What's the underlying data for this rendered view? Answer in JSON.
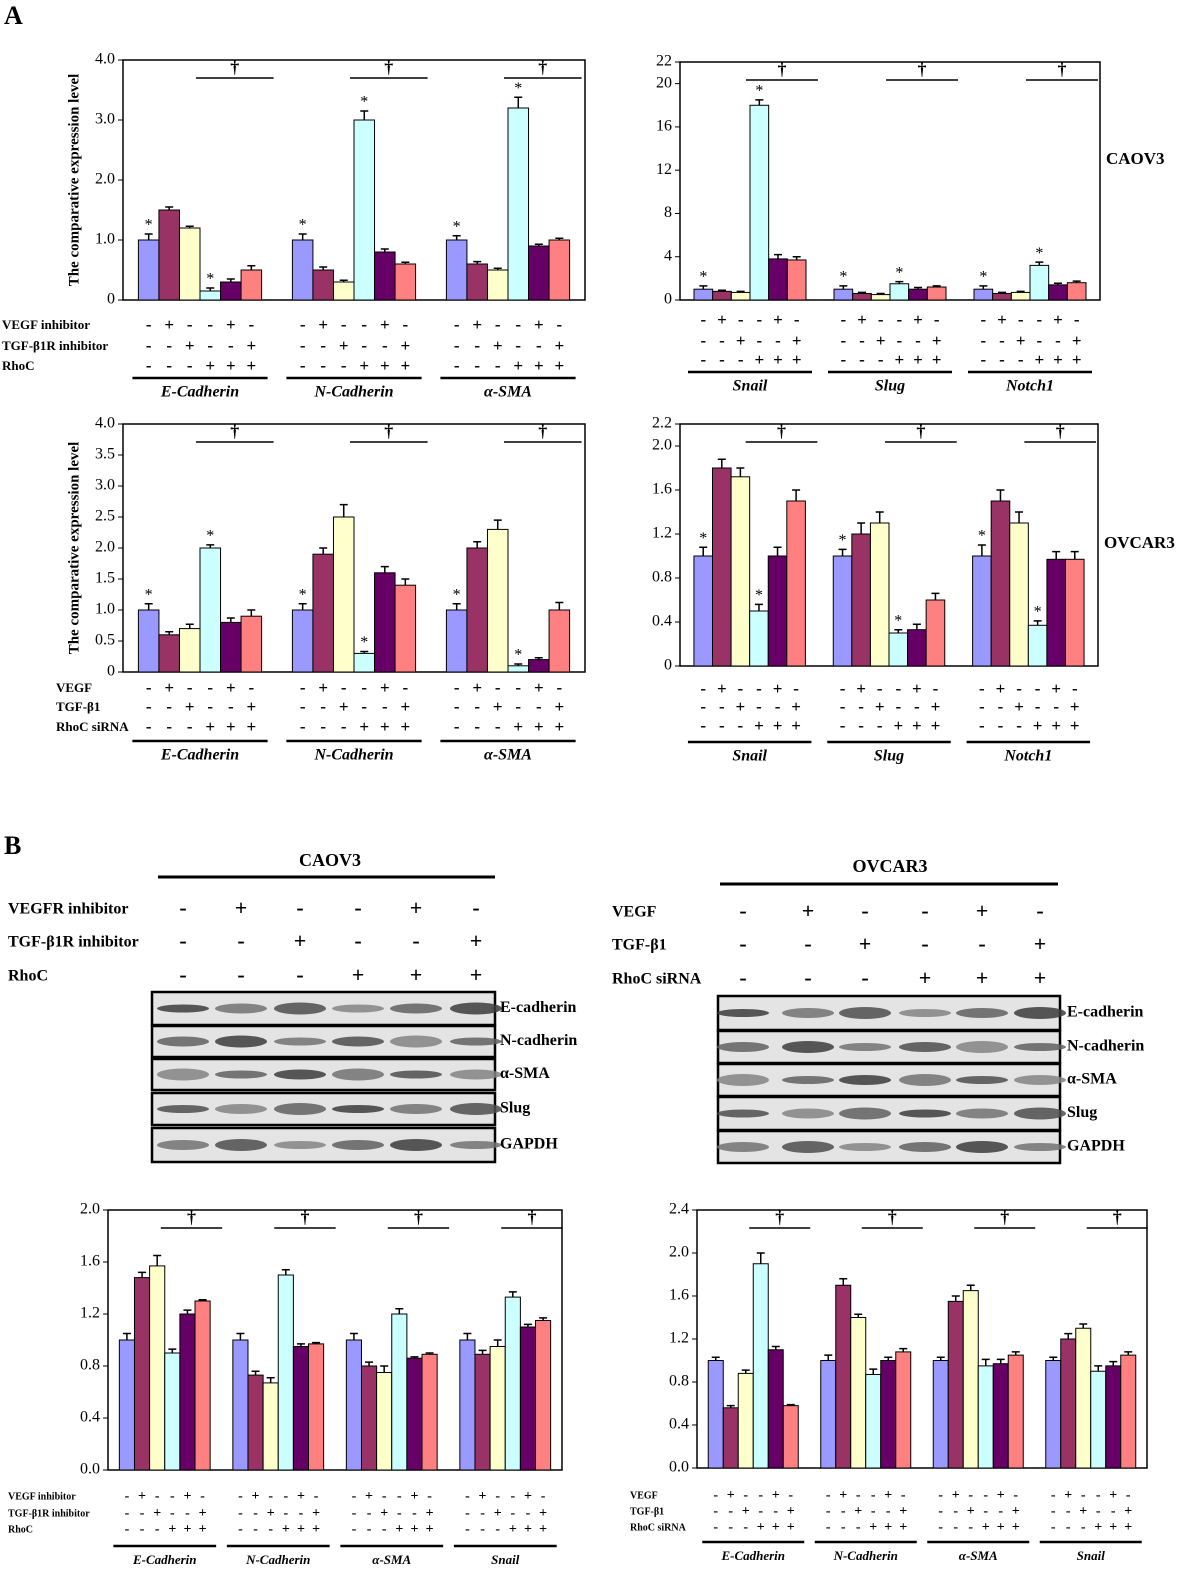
{
  "panel_labels": [
    "A",
    "B"
  ],
  "chart_data": [
    {
      "type": "bar",
      "ylabel": "The comparative expression level",
      "categories": [
        "E-Cadherin",
        "N-Cadherin",
        "α-SMA"
      ],
      "ylim": [
        0,
        4
      ],
      "yticks": [
        0,
        {
          "value": 1,
          "label": "1.0"
        },
        {
          "value": 2,
          "label": "2.0"
        },
        {
          "value": 3,
          "label": "3.0"
        },
        {
          "value": 4,
          "label": "4.0"
        }
      ],
      "series": [
        {
          "color": "#9999ff",
          "values": [
            1.0,
            1.0,
            1.0
          ],
          "errors": [
            0.1,
            0.1,
            0.07
          ]
        },
        {
          "color": "#993366",
          "values": [
            1.5,
            0.5,
            0.6
          ],
          "errors": [
            0.05,
            0.05,
            0.04
          ]
        },
        {
          "color": "#ffffcc",
          "values": [
            1.2,
            0.3,
            0.5
          ],
          "errors": [
            0.03,
            0.03,
            0.03
          ]
        },
        {
          "color": "#ccffff",
          "values": [
            0.15,
            3.0,
            3.2
          ],
          "errors": [
            0.05,
            0.15,
            0.18
          ]
        },
        {
          "color": "#660066",
          "values": [
            0.3,
            0.8,
            0.9
          ],
          "errors": [
            0.05,
            0.05,
            0.03
          ]
        },
        {
          "color": "#ff8080",
          "values": [
            0.5,
            0.6,
            1.0
          ],
          "errors": [
            0.07,
            0.03,
            0.03
          ]
        }
      ],
      "conditions": [
        {
          "label": "VEGF inhibitor",
          "signs": [
            "-",
            "+",
            "-",
            "-",
            "+",
            "-"
          ]
        },
        {
          "label": "TGF-β1R inhibitor",
          "signs": [
            "-",
            "-",
            "+",
            "-",
            "-",
            "+"
          ]
        },
        {
          "label": "RhoC",
          "signs": [
            "-",
            "-",
            "-",
            "+",
            "+",
            "+"
          ]
        }
      ],
      "annotations": [
        {
          "text": "*",
          "series": 0,
          "category": 0
        },
        {
          "text": "*",
          "series": 0,
          "category": 1
        },
        {
          "text": "*",
          "series": 0,
          "category": 2
        },
        {
          "text": "*",
          "series": 3,
          "category": 0
        },
        {
          "text": "*",
          "series": 3,
          "category": 1
        },
        {
          "text": "*",
          "series": 3,
          "category": 2
        }
      ],
      "dagger": "†"
    },
    {
      "type": "bar",
      "side_label": "CAOV3",
      "categories": [
        "Snail",
        "Slug",
        "Notch1"
      ],
      "ylim": [
        0,
        22
      ],
      "yticks": [
        0,
        4,
        8,
        12,
        16,
        20,
        22
      ],
      "series": [
        {
          "color": "#9999ff",
          "values": [
            1.0,
            1.0,
            1.0
          ],
          "errors": [
            0.3,
            0.3,
            0.3
          ]
        },
        {
          "color": "#993366",
          "values": [
            0.8,
            0.6,
            0.6
          ],
          "errors": [
            0.1,
            0.1,
            0.1
          ]
        },
        {
          "color": "#ffffcc",
          "values": [
            0.7,
            0.5,
            0.7
          ],
          "errors": [
            0.1,
            0.1,
            0.1
          ]
        },
        {
          "color": "#ccffff",
          "values": [
            18,
            1.5,
            3.2
          ],
          "errors": [
            0.5,
            0.2,
            0.3
          ]
        },
        {
          "color": "#660066",
          "values": [
            3.8,
            1.0,
            1.4
          ],
          "errors": [
            0.4,
            0.15,
            0.15
          ]
        },
        {
          "color": "#ff8080",
          "values": [
            3.7,
            1.2,
            1.6
          ],
          "errors": [
            0.3,
            0.1,
            0.15
          ]
        }
      ],
      "conditions": [
        {
          "signs": [
            "-",
            "+",
            "-",
            "-",
            "+",
            "-"
          ]
        },
        {
          "signs": [
            "-",
            "-",
            "+",
            "-",
            "-",
            "+"
          ]
        },
        {
          "signs": [
            "-",
            "-",
            "-",
            "+",
            "+",
            "+"
          ]
        }
      ],
      "annotations": [
        {
          "text": "*",
          "series": 0,
          "category": 0
        },
        {
          "text": "*",
          "series": 0,
          "category": 1
        },
        {
          "text": "*",
          "series": 0,
          "category": 2
        },
        {
          "text": "*",
          "series": 3,
          "category": 0
        },
        {
          "text": "*",
          "series": 3,
          "category": 1
        },
        {
          "text": "*",
          "series": 3,
          "category": 2
        }
      ],
      "dagger": "†"
    },
    {
      "type": "bar",
      "ylabel": "The comparative expression level",
      "categories": [
        "E-Cadherin",
        "N-Cadherin",
        "α-SMA"
      ],
      "ylim": [
        0,
        4
      ],
      "yticks": [
        0,
        0.5,
        {
          "value": 1,
          "label": "1.0"
        },
        1.5,
        {
          "value": 2,
          "label": "2.0"
        },
        2.5,
        {
          "value": 3,
          "label": "3.0"
        },
        3.5,
        {
          "value": 4,
          "label": "4.0"
        }
      ],
      "series": [
        {
          "color": "#9999ff",
          "values": [
            1.0,
            1.0,
            1.0
          ],
          "errors": [
            0.1,
            0.1,
            0.1
          ]
        },
        {
          "color": "#993366",
          "values": [
            0.6,
            1.9,
            2.0
          ],
          "errors": [
            0.05,
            0.1,
            0.1
          ]
        },
        {
          "color": "#ffffcc",
          "values": [
            0.7,
            2.5,
            2.3
          ],
          "errors": [
            0.07,
            0.2,
            0.15
          ]
        },
        {
          "color": "#ccffff",
          "values": [
            2.0,
            0.3,
            0.1
          ],
          "errors": [
            0.05,
            0.03,
            0.03
          ]
        },
        {
          "color": "#660066",
          "values": [
            0.8,
            1.6,
            0.2
          ],
          "errors": [
            0.07,
            0.1,
            0.03
          ]
        },
        {
          "color": "#ff8080",
          "values": [
            0.9,
            1.4,
            1.0
          ],
          "errors": [
            0.1,
            0.1,
            0.12
          ]
        }
      ],
      "conditions": [
        {
          "label": "VEGF",
          "signs": [
            "-",
            "+",
            "-",
            "-",
            "+",
            "-"
          ]
        },
        {
          "label": "TGF-β1",
          "signs": [
            "-",
            "-",
            "+",
            "-",
            "-",
            "+"
          ]
        },
        {
          "label": "RhoC siRNA",
          "signs": [
            "-",
            "-",
            "-",
            "+",
            "+",
            "+"
          ]
        }
      ],
      "annotations": [
        {
          "text": "*",
          "series": 0,
          "category": 0
        },
        {
          "text": "*",
          "series": 0,
          "category": 1
        },
        {
          "text": "*",
          "series": 0,
          "category": 2
        },
        {
          "text": "*",
          "series": 3,
          "category": 0
        },
        {
          "text": "*",
          "series": 3,
          "category": 1
        },
        {
          "text": "*",
          "series": 3,
          "category": 2
        }
      ],
      "dagger": "†"
    },
    {
      "type": "bar",
      "side_label": "OVCAR3",
      "categories": [
        "Snail",
        "Slug",
        "Notch1"
      ],
      "ylim": [
        0,
        2.2
      ],
      "yticks": [
        0,
        0.4,
        0.8,
        1.2,
        1.6,
        {
          "value": 2,
          "label": "2.0"
        },
        2.2
      ],
      "series": [
        {
          "color": "#9999ff",
          "values": [
            1.0,
            1.0,
            1.0
          ],
          "errors": [
            0.08,
            0.06,
            0.1
          ]
        },
        {
          "color": "#993366",
          "values": [
            1.8,
            1.2,
            1.5
          ],
          "errors": [
            0.08,
            0.1,
            0.1
          ]
        },
        {
          "color": "#ffffcc",
          "values": [
            1.72,
            1.3,
            1.3
          ],
          "errors": [
            0.08,
            0.1,
            0.1
          ]
        },
        {
          "color": "#ccffff",
          "values": [
            0.5,
            0.3,
            0.37
          ],
          "errors": [
            0.06,
            0.03,
            0.04
          ]
        },
        {
          "color": "#660066",
          "values": [
            1.0,
            0.33,
            0.97
          ],
          "errors": [
            0.08,
            0.05,
            0.07
          ]
        },
        {
          "color": "#ff8080",
          "values": [
            1.5,
            0.6,
            0.97
          ],
          "errors": [
            0.1,
            0.06,
            0.07
          ]
        }
      ],
      "conditions": [
        {
          "signs": [
            "-",
            "+",
            "-",
            "-",
            "+",
            "-"
          ]
        },
        {
          "signs": [
            "-",
            "-",
            "+",
            "-",
            "-",
            "+"
          ]
        },
        {
          "signs": [
            "-",
            "-",
            "-",
            "+",
            "+",
            "+"
          ]
        }
      ],
      "annotations": [
        {
          "text": "*",
          "series": 0,
          "category": 0
        },
        {
          "text": "*",
          "series": 0,
          "category": 1
        },
        {
          "text": "*",
          "series": 0,
          "category": 2
        },
        {
          "text": "*",
          "series": 3,
          "category": 0
        },
        {
          "text": "*",
          "series": 3,
          "category": 1
        },
        {
          "text": "*",
          "series": 3,
          "category": 2
        }
      ],
      "dagger": "†"
    },
    {
      "type": "bar",
      "categories": [
        "E-Cadherin",
        "N-Cadherin",
        "α-SMA",
        "Snail"
      ],
      "ylim": [
        0,
        2
      ],
      "yticks": [
        {
          "value": 0,
          "label": "0.0"
        },
        0.4,
        0.8,
        1.2,
        1.6,
        {
          "value": 2,
          "label": "2.0"
        }
      ],
      "series": [
        {
          "color": "#9999ff",
          "values": [
            1.0,
            1.0,
            1.0,
            1.0
          ],
          "errors": [
            0.05,
            0.05,
            0.05,
            0.05
          ]
        },
        {
          "color": "#993366",
          "values": [
            1.48,
            0.73,
            0.8,
            0.89
          ],
          "errors": [
            0.04,
            0.03,
            0.03,
            0.03
          ]
        },
        {
          "color": "#ffffcc",
          "values": [
            1.57,
            0.67,
            0.75,
            0.95
          ],
          "errors": [
            0.08,
            0.04,
            0.05,
            0.05
          ]
        },
        {
          "color": "#ccffff",
          "values": [
            0.9,
            1.5,
            1.2,
            1.33
          ],
          "errors": [
            0.03,
            0.04,
            0.04,
            0.04
          ]
        },
        {
          "color": "#660066",
          "values": [
            1.2,
            0.95,
            0.86,
            1.1
          ],
          "errors": [
            0.03,
            0.02,
            0.01,
            0.02
          ]
        },
        {
          "color": "#ff8080",
          "values": [
            1.3,
            0.97,
            0.89,
            1.15
          ],
          "errors": [
            0.01,
            0.01,
            0.01,
            0.02
          ]
        }
      ],
      "conditions": [
        {
          "label": "VEGF inhibitor",
          "signs": [
            "-",
            "+",
            "-",
            "-",
            "+",
            "-"
          ]
        },
        {
          "label": "TGF-β1R inhibitor",
          "signs": [
            "-",
            "-",
            "+",
            "-",
            "-",
            "+"
          ]
        },
        {
          "label": "RhoC",
          "signs": [
            "-",
            "-",
            "-",
            "+",
            "+",
            "+"
          ]
        }
      ],
      "annotations": [],
      "dagger": "†"
    },
    {
      "type": "bar",
      "categories": [
        "E-Cadherin",
        "N-Cadherin",
        "α-SMA",
        "Snail"
      ],
      "ylim": [
        0,
        2.4
      ],
      "yticks": [
        {
          "value": 0,
          "label": "0.0"
        },
        0.4,
        0.8,
        1.2,
        1.6,
        {
          "value": 2,
          "label": "2.0"
        },
        2.4
      ],
      "series": [
        {
          "color": "#9999ff",
          "values": [
            1.0,
            1.0,
            1.0,
            1.0
          ],
          "errors": [
            0.03,
            0.05,
            0.03,
            0.03
          ]
        },
        {
          "color": "#993366",
          "values": [
            0.56,
            1.7,
            1.55,
            1.2
          ],
          "errors": [
            0.02,
            0.06,
            0.05,
            0.05
          ]
        },
        {
          "color": "#ffffcc",
          "values": [
            0.88,
            1.4,
            1.65,
            1.3
          ],
          "errors": [
            0.03,
            0.03,
            0.05,
            0.04
          ]
        },
        {
          "color": "#ccffff",
          "values": [
            1.9,
            0.87,
            0.95,
            0.9
          ],
          "errors": [
            0.1,
            0.05,
            0.06,
            0.05
          ]
        },
        {
          "color": "#660066",
          "values": [
            1.1,
            1.0,
            0.97,
            0.95
          ],
          "errors": [
            0.03,
            0.03,
            0.04,
            0.04
          ]
        },
        {
          "color": "#ff8080",
          "values": [
            0.58,
            1.08,
            1.05,
            1.05
          ],
          "errors": [
            0.01,
            0.03,
            0.03,
            0.03
          ]
        }
      ],
      "conditions": [
        {
          "label": "VEGF",
          "signs": [
            "-",
            "+",
            "-",
            "-",
            "+",
            "-"
          ]
        },
        {
          "label": "TGF-β1",
          "signs": [
            "-",
            "-",
            "+",
            "-",
            "-",
            "+"
          ]
        },
        {
          "label": "RhoC siRNA",
          "signs": [
            "-",
            "-",
            "-",
            "+",
            "+",
            "+"
          ]
        }
      ],
      "annotations": [],
      "dagger": "†"
    }
  ],
  "blots": [
    {
      "title": "CAOV3",
      "conditions": [
        {
          "label": "VEGFR inhibitor",
          "signs": [
            "-",
            "+",
            "-",
            "-",
            "+",
            "-"
          ]
        },
        {
          "label": "TGF-β1R inhibitor",
          "signs": [
            "-",
            "-",
            "+",
            "-",
            "-",
            "+"
          ]
        },
        {
          "label": "RhoC",
          "signs": [
            "-",
            "-",
            "-",
            "+",
            "+",
            "+"
          ]
        }
      ],
      "bands": [
        "E-cadherin",
        "N-cadherin",
        "α-SMA",
        "Slug",
        "GAPDH"
      ]
    },
    {
      "title": "OVCAR3",
      "conditions": [
        {
          "label": "VEGF",
          "signs": [
            "-",
            "+",
            "-",
            "-",
            "+",
            "-"
          ]
        },
        {
          "label": "TGF-β1",
          "signs": [
            "-",
            "-",
            "+",
            "-",
            "-",
            "+"
          ]
        },
        {
          "label": "RhoC siRNA",
          "signs": [
            "-",
            "-",
            "-",
            "+",
            "+",
            "+"
          ]
        }
      ],
      "bands": [
        "E-cadherin",
        "N-cadherin",
        "α-SMA",
        "Slug",
        "GAPDH"
      ]
    }
  ]
}
